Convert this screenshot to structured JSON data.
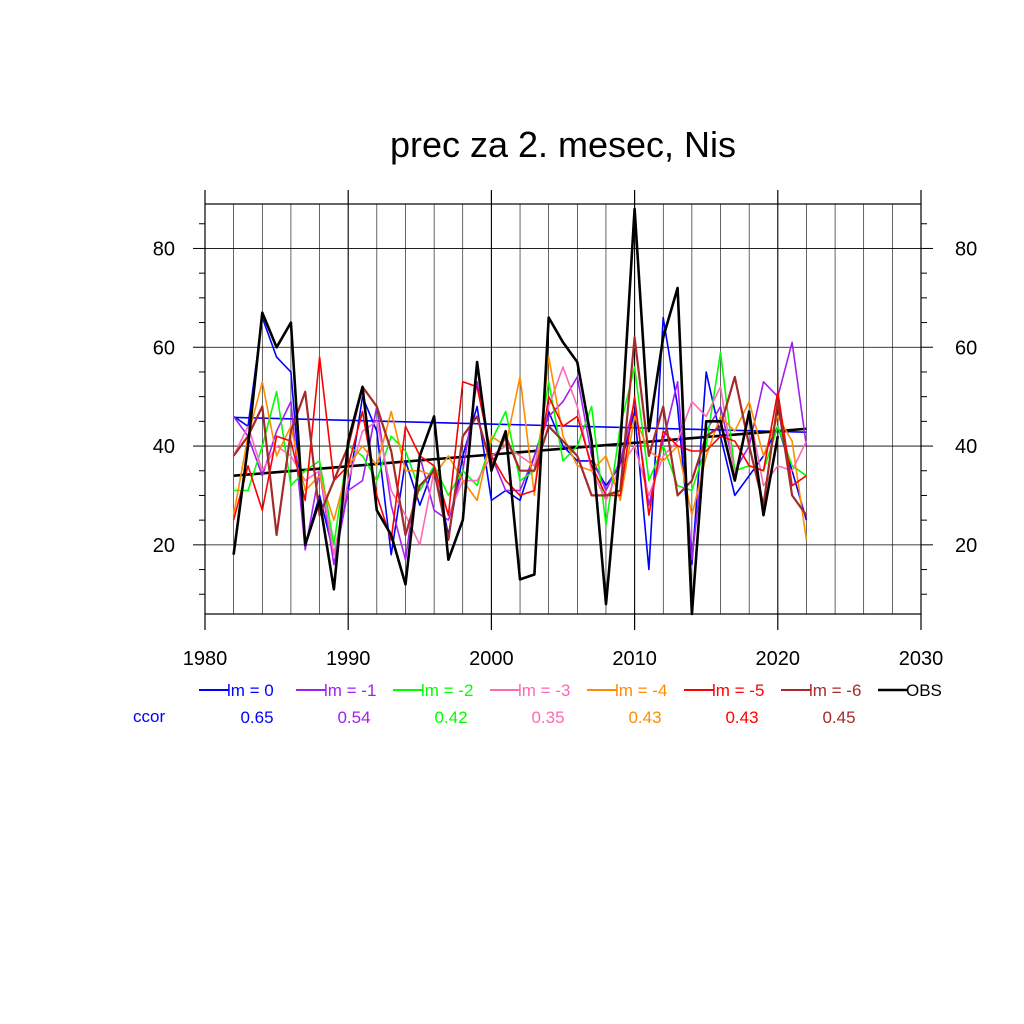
{
  "chart_data": {
    "type": "line",
    "title": "prec za 2. mesec, Nis",
    "xlim": [
      1980,
      2030
    ],
    "ylim": [
      6,
      89
    ],
    "x_ticks": [
      1980,
      1990,
      2000,
      2010,
      2020,
      2030
    ],
    "y_ticks": [
      20,
      40,
      60,
      80
    ],
    "grid": true,
    "ccor_label": "ccor",
    "x": [
      1982,
      1983,
      1984,
      1985,
      1986,
      1987,
      1988,
      1989,
      1990,
      1991,
      1992,
      1993,
      1994,
      1995,
      1996,
      1997,
      1998,
      1999,
      2000,
      2001,
      2002,
      2003,
      2004,
      2005,
      2006,
      2007,
      2008,
      2009,
      2010,
      2011,
      2012,
      2013,
      2014,
      2015,
      2016,
      2017,
      2018,
      2019,
      2020,
      2021,
      2022
    ],
    "series": [
      {
        "name": "lm = 0",
        "color": "#0000ff",
        "ccor": "0.65",
        "width": 1.6,
        "values": [
          46,
          44,
          66,
          58,
          55,
          20,
          30,
          18,
          31,
          50,
          43,
          18,
          37,
          28,
          36,
          22,
          38,
          48,
          29,
          31,
          29,
          38,
          47,
          40,
          37,
          37,
          32,
          36,
          47,
          15,
          66,
          48,
          16,
          55,
          42,
          30,
          34,
          38,
          44,
          35,
          25
        ],
        "trend": [
          45.8,
          42.8
        ]
      },
      {
        "name": "lm = -1",
        "color": "#a020f0",
        "ccor": "0.54",
        "width": 1.6,
        "values": [
          46,
          42,
          34,
          43,
          49,
          19,
          35,
          16,
          31,
          33,
          48,
          28,
          17,
          38,
          27,
          25,
          35,
          53,
          38,
          31,
          31,
          38,
          46,
          49,
          54,
          38,
          31,
          37,
          49,
          28,
          41,
          53,
          17,
          43,
          48,
          35,
          40,
          53,
          50,
          61,
          40
        ]
      },
      {
        "name": "lm = -2",
        "color": "#00ff00",
        "ccor": "0.42",
        "width": 1.6,
        "values": [
          31,
          31,
          40,
          51,
          32,
          35,
          37,
          20,
          40,
          38,
          33,
          42,
          39,
          31,
          36,
          30,
          35,
          32,
          41,
          47,
          33,
          35,
          53,
          37,
          40,
          48,
          24,
          44,
          56,
          33,
          40,
          32,
          31,
          40,
          59,
          35,
          36,
          35,
          44,
          36,
          34
        ]
      },
      {
        "name": "lm = -3",
        "color": "#ff69b4",
        "ccor": "0.35",
        "width": 1.6,
        "values": [
          38,
          44,
          35,
          40,
          38,
          33,
          35,
          18,
          33,
          43,
          45,
          31,
          26,
          20,
          35,
          26,
          33,
          33,
          38,
          40,
          38,
          36,
          48,
          56,
          48,
          35,
          29,
          36,
          40,
          30,
          38,
          41,
          49,
          46,
          52,
          34,
          47,
          32,
          36,
          35,
          41
        ]
      },
      {
        "name": "lm = -4",
        "color": "#ff8c00",
        "ccor": "0.43",
        "width": 1.6,
        "values": [
          26,
          42,
          53,
          38,
          44,
          31,
          34,
          25,
          36,
          40,
          36,
          47,
          35,
          35,
          34,
          38,
          33,
          29,
          42,
          40,
          54,
          30,
          58,
          42,
          36,
          35,
          38,
          29,
          46,
          39,
          37,
          40,
          26,
          38,
          46,
          43,
          49,
          38,
          46,
          41,
          21
        ]
      },
      {
        "name": "lm = -5",
        "color": "#ff0000",
        "ccor": "0.43",
        "width": 1.6,
        "values": [
          25,
          36,
          27,
          42,
          41,
          29,
          58,
          33,
          36,
          47,
          30,
          21,
          44,
          38,
          36,
          26,
          53,
          52,
          38,
          33,
          30,
          31,
          50,
          44,
          46,
          36,
          30,
          30,
          50,
          26,
          43,
          40,
          39,
          39,
          42,
          41,
          36,
          35,
          51,
          32,
          34
        ]
      },
      {
        "name": "lm = -6",
        "color": "#a52a2a",
        "ccor": "0.45",
        "width": 2.2,
        "values": [
          38,
          42,
          48,
          22,
          43,
          51,
          26,
          33,
          40,
          52,
          48,
          39,
          22,
          32,
          35,
          21,
          42,
          46,
          36,
          42,
          35,
          35,
          44,
          41,
          38,
          30,
          30,
          31,
          62,
          38,
          48,
          30,
          33,
          42,
          44,
          54,
          40,
          28,
          49,
          30,
          26
        ]
      },
      {
        "name": "OBS",
        "color": "#000000",
        "ccor": "",
        "width": 2.6,
        "values": [
          18,
          40,
          67,
          60,
          65,
          20,
          29,
          11,
          41,
          52,
          27,
          22,
          12,
          38,
          46,
          17,
          25,
          57,
          35,
          43,
          13,
          14,
          66,
          61,
          57,
          41,
          8,
          40,
          88,
          43,
          62,
          72,
          6,
          45,
          45,
          33,
          47,
          26,
          42,
          null,
          null
        ],
        "trend": [
          34,
          43.5
        ]
      }
    ]
  }
}
